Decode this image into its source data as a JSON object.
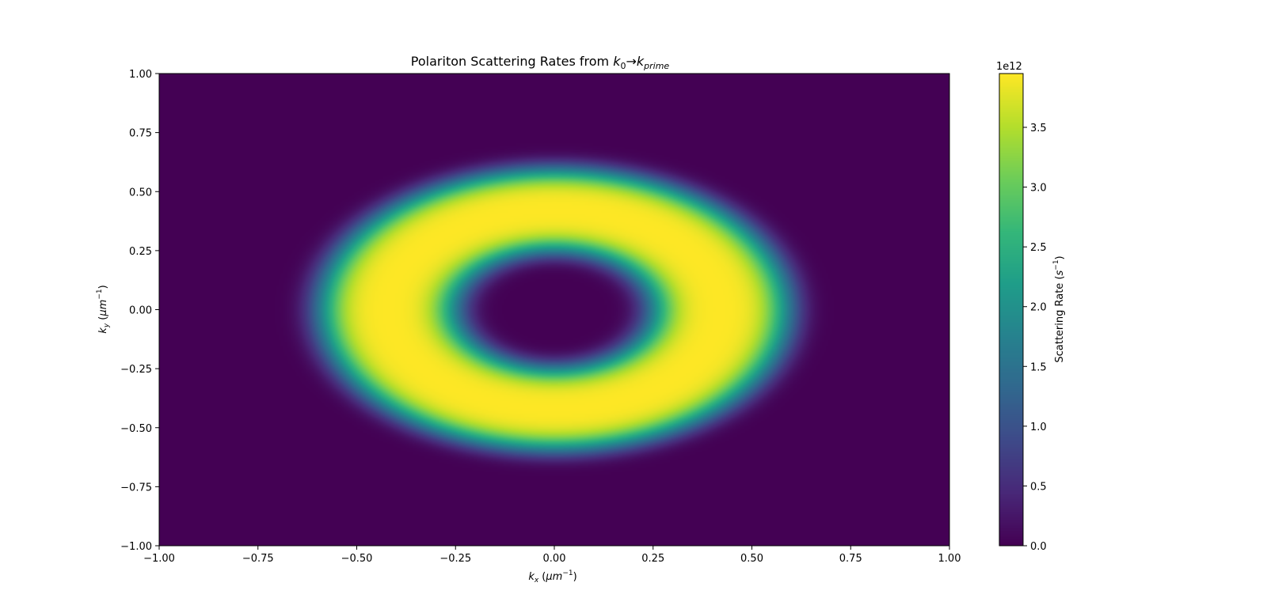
{
  "chart_data": {
    "type": "heatmap",
    "title": "Polariton Scattering Rates from k₀→kₚᵣᵢₘₑ",
    "title_parts": {
      "prefix": "Polariton Scattering Rates from ",
      "k": "k",
      "sub0": "0",
      "arrow": "→",
      "sub_prime": "prime"
    },
    "xlabel": {
      "var": "k",
      "sub": "x",
      "unit_prefix": " (",
      "unit": "μm",
      "exp": "−1",
      "unit_suffix": ")"
    },
    "ylabel": {
      "var": "k",
      "sub": "y",
      "unit_prefix": " (",
      "unit": "μm",
      "exp": "−1",
      "unit_suffix": ")"
    },
    "xlim": [
      -1.0,
      1.0
    ],
    "ylim": [
      -1.0,
      1.0
    ],
    "xticks": [
      "−1.00",
      "−0.75",
      "−0.50",
      "−0.25",
      "0.00",
      "0.25",
      "0.50",
      "0.75",
      "1.00"
    ],
    "yticks": [
      "−1.00",
      "−0.75",
      "−0.50",
      "−0.25",
      "0.00",
      "0.25",
      "0.50",
      "0.75",
      "1.00"
    ],
    "colormap": "viridis",
    "grid": false,
    "field": {
      "shape": "ring",
      "peak_radius": 0.42,
      "radial_width": 0.15,
      "center_value": 0.0,
      "peak_value": 3950000000000.0,
      "description_units": "s^-1"
    },
    "colorbar": {
      "label": {
        "prefix": "Scattering Rate (",
        "var": "s",
        "exp": "−1",
        "suffix": ")"
      },
      "offset_text": "1e12",
      "min": 0.0,
      "max": 3.95,
      "ticks": [
        "0.0",
        "0.5",
        "1.0",
        "1.5",
        "2.0",
        "2.5",
        "3.0",
        "3.5"
      ]
    }
  }
}
